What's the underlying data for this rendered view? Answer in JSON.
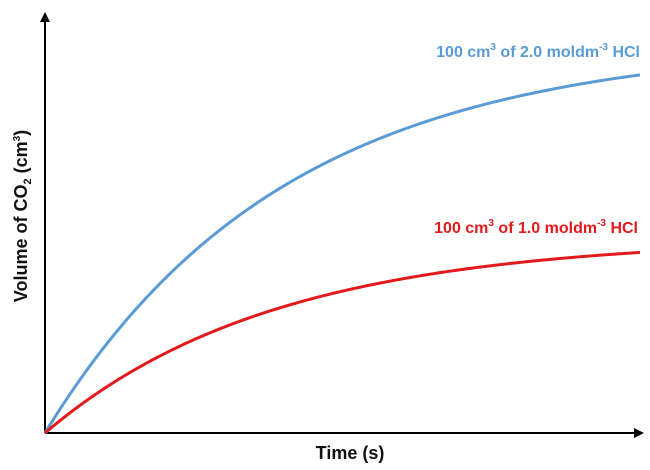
{
  "chart_data": {
    "type": "line",
    "title": "",
    "xlabel": "Time (s)",
    "ylabel": {
      "before_sub": "Volume of CO",
      "sub": "2",
      "middle": " (cm",
      "sup": "3",
      "after": ")"
    },
    "xticks": [],
    "yticks": [],
    "grid": false,
    "series": [
      {
        "name": "100 cm³ of 2.0 moldm⁻³ HCl",
        "label_parts": {
          "a": "100 cm",
          "sup1": "3",
          "b": " of 2.0 moldm",
          "sup2": "-3",
          "c": " HCl"
        },
        "color": "#5b9bd5",
        "plateau": 0.94,
        "rate": 2.5
      },
      {
        "name": "100 cm³ of 1.0 moldm⁻³ HCl",
        "label_parts": {
          "a": "100 cm",
          "sup1": "3",
          "b": " of 1.0 moldm",
          "sup2": "-3",
          "c": " HCl"
        },
        "color": "#e31a1c",
        "plateau": 0.47,
        "rate": 2.6
      }
    ]
  }
}
